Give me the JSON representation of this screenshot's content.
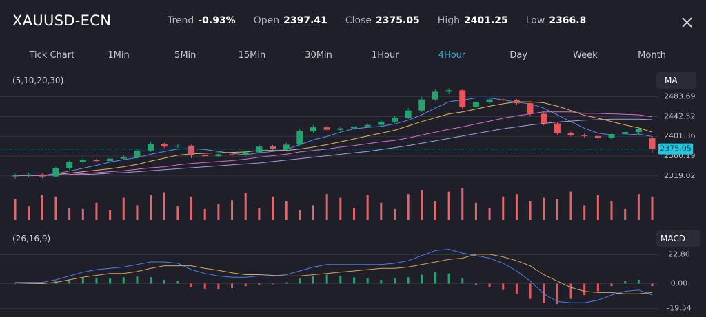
{
  "header": {
    "symbol": "XAUUSD-ECN",
    "stats": [
      {
        "label": "Trend",
        "value": "-0.93%"
      },
      {
        "label": "Open",
        "value": "2397.41"
      },
      {
        "label": "Close",
        "value": "2375.05"
      },
      {
        "label": "High",
        "value": "2401.25"
      },
      {
        "label": "Low",
        "value": "2366.8"
      }
    ]
  },
  "timeframes": {
    "items": [
      "Tick Chart",
      "1Min",
      "5Min",
      "15Min",
      "30Min",
      "1Hour",
      "4Hour",
      "Day",
      "Week",
      "Month"
    ],
    "active": 6,
    "active_color": "#2bb5e8"
  },
  "chart_data": [
    {
      "type": "candlestick",
      "indicator_params": "(5,10,20,30)",
      "indicator": "MA",
      "up_color": "#22a46e",
      "down_color": "#e8565c",
      "last_color": "#1ec8e0",
      "ylim": [
        2306,
        2506
      ],
      "yticks": [
        2483.69,
        2442.52,
        2401.36,
        2360.19,
        2319.02
      ],
      "grid": true,
      "open": [
        2318,
        2320,
        2322,
        2318,
        2335,
        2348,
        2352,
        2350,
        2355,
        2358,
        2372,
        2385,
        2380,
        2382,
        2362,
        2360,
        2364,
        2362,
        2368,
        2380,
        2376,
        2384,
        2412,
        2420,
        2415,
        2418,
        2422,
        2425,
        2432,
        2440,
        2455,
        2478,
        2494,
        2497,
        2462,
        2472,
        2478,
        2476,
        2470,
        2448,
        2428,
        2408,
        2404,
        2402,
        2398,
        2406,
        2410,
        2397.41
      ],
      "high": [
        2324,
        2326,
        2325,
        2338,
        2351,
        2356,
        2355,
        2358,
        2362,
        2376,
        2390,
        2388,
        2386,
        2384,
        2366,
        2367,
        2366,
        2372,
        2384,
        2383,
        2388,
        2416,
        2425,
        2423,
        2422,
        2426,
        2428,
        2436,
        2444,
        2460,
        2483,
        2499,
        2501,
        2499,
        2476,
        2482,
        2481,
        2479,
        2472,
        2451,
        2431,
        2411,
        2407,
        2405,
        2409,
        2413,
        2420,
        2401.25
      ],
      "low": [
        2313,
        2316,
        2314,
        2316,
        2332,
        2345,
        2347,
        2347,
        2352,
        2355,
        2369,
        2377,
        2377,
        2356,
        2357,
        2358,
        2359,
        2360,
        2365,
        2373,
        2373,
        2382,
        2409,
        2412,
        2412,
        2415,
        2419,
        2422,
        2429,
        2437,
        2452,
        2475,
        2490,
        2458,
        2459,
        2469,
        2473,
        2467,
        2444,
        2424,
        2404,
        2401,
        2399,
        2395,
        2395,
        2403,
        2407,
        2366.8
      ],
      "close": [
        2320,
        2322,
        2318,
        2335,
        2348,
        2352,
        2350,
        2355,
        2358,
        2372,
        2385,
        2380,
        2382,
        2362,
        2360,
        2364,
        2362,
        2368,
        2380,
        2376,
        2384,
        2412,
        2420,
        2415,
        2418,
        2422,
        2425,
        2432,
        2440,
        2455,
        2478,
        2494,
        2497,
        2462,
        2472,
        2478,
        2476,
        2470,
        2448,
        2428,
        2408,
        2404,
        2402,
        2398,
        2406,
        2410,
        2416,
        2375.05
      ],
      "series": [
        {
          "color": "#5b8def",
          "values": [
            2320,
            2321,
            2320,
            2324,
            2329,
            2335,
            2341,
            2348,
            2353,
            2357,
            2364,
            2370,
            2375,
            2376,
            2374,
            2370,
            2366,
            2363,
            2367,
            2370,
            2374,
            2384,
            2394,
            2401,
            2410,
            2417,
            2420,
            2422,
            2427,
            2435,
            2446,
            2460,
            2473,
            2477,
            2481,
            2481,
            2477,
            2472,
            2469,
            2460,
            2446,
            2432,
            2418,
            2408,
            2404,
            2404,
            2406,
            2401
          ]
        },
        {
          "color": "#e8b35a",
          "values": [
            2320,
            2321,
            2320,
            2322,
            2325,
            2328,
            2331,
            2334,
            2338,
            2343,
            2350,
            2356,
            2362,
            2365,
            2366,
            2367,
            2368,
            2369,
            2372,
            2372,
            2372,
            2375,
            2379,
            2384,
            2390,
            2396,
            2402,
            2408,
            2414,
            2423,
            2432,
            2440,
            2448,
            2452,
            2458,
            2464,
            2469,
            2473,
            2473,
            2471,
            2464,
            2455,
            2445,
            2439,
            2432,
            2425,
            2419,
            2410
          ]
        },
        {
          "color": "#d96bd0",
          "values": [
            2320,
            2320,
            2320,
            2321,
            2322,
            2324,
            2326,
            2328,
            2330,
            2333,
            2336,
            2338,
            2342,
            2345,
            2347,
            2349,
            2351,
            2354,
            2358,
            2361,
            2364,
            2369,
            2372,
            2375,
            2379,
            2382,
            2386,
            2390,
            2393,
            2398,
            2404,
            2410,
            2416,
            2421,
            2427,
            2433,
            2439,
            2444,
            2448,
            2452,
            2452,
            2452,
            2449,
            2449,
            2448,
            2447,
            2446,
            2442
          ]
        },
        {
          "color": "#a89be0",
          "values": [
            2320,
            2320,
            2320,
            2321,
            2321,
            2322,
            2323,
            2325,
            2326,
            2328,
            2330,
            2332,
            2334,
            2336,
            2338,
            2340,
            2342,
            2344,
            2346,
            2349,
            2352,
            2355,
            2358,
            2361,
            2364,
            2367,
            2370,
            2374,
            2378,
            2382,
            2387,
            2392,
            2397,
            2402,
            2407,
            2412,
            2417,
            2421,
            2425,
            2428,
            2431,
            2433,
            2435,
            2436,
            2437,
            2437,
            2437,
            2436
          ]
        }
      ]
    },
    {
      "type": "bar",
      "color": "#e0676c",
      "ylim": [
        0,
        60
      ],
      "values": [
        34,
        22,
        40,
        38,
        20,
        18,
        28,
        16,
        36,
        24,
        40,
        45,
        22,
        38,
        18,
        26,
        32,
        44,
        20,
        38,
        30,
        16,
        24,
        42,
        36,
        20,
        40,
        28,
        18,
        42,
        48,
        30,
        46,
        52,
        28,
        20,
        38,
        42,
        30,
        36,
        34,
        46,
        24,
        40,
        30,
        18,
        42,
        38
      ]
    },
    {
      "type": "macd",
      "indicator_params": "(26,16,9)",
      "indicator": "MACD",
      "up_color": "#22a46e",
      "down_color": "#e8565c",
      "ylim": [
        -23,
        30
      ],
      "yticks": [
        {
          "value": 22.8,
          "label": "22.80"
        },
        {
          "value": 0,
          "label": "0.00"
        },
        -19.54
      ],
      "grid": true,
      "values": [
        0.5,
        0.8,
        1,
        2,
        3,
        4,
        4.5,
        4,
        5,
        5.5,
        5,
        3,
        2,
        -3,
        -4,
        -4.5,
        -3.5,
        -2,
        -1,
        -0.5,
        1,
        4,
        6,
        7,
        6,
        5,
        4,
        3,
        4,
        5,
        7,
        9,
        8,
        4,
        -1,
        -3,
        -5,
        -8,
        -12,
        -15,
        -16,
        -12,
        -9,
        -6,
        -2,
        2,
        3,
        -2
      ],
      "series": [
        {
          "color": "#4f7be8",
          "values": [
            1,
            1,
            1,
            3,
            6,
            9,
            11,
            12,
            13,
            15,
            17,
            17,
            16,
            11,
            8,
            6,
            5,
            5,
            6,
            6,
            7,
            10,
            13,
            15,
            15,
            15,
            15,
            15,
            16,
            18,
            22,
            26,
            27,
            24,
            22,
            20,
            16,
            10,
            2,
            -8,
            -14,
            -15,
            -15,
            -13,
            -9,
            -6,
            -5,
            -9
          ]
        },
        {
          "color": "#d9a45c",
          "values": [
            0.5,
            0.2,
            0,
            1,
            3,
            5,
            6.5,
            8,
            8,
            9.5,
            12,
            14,
            14,
            14,
            12,
            10.5,
            8.5,
            7,
            7,
            6.5,
            6,
            6,
            7,
            8,
            9,
            10,
            11,
            12,
            12,
            13,
            15,
            17,
            19,
            20,
            23,
            23,
            21,
            18,
            14,
            7,
            2,
            -3,
            -6,
            -7,
            -7,
            -8,
            -8,
            -7
          ]
        }
      ]
    }
  ]
}
